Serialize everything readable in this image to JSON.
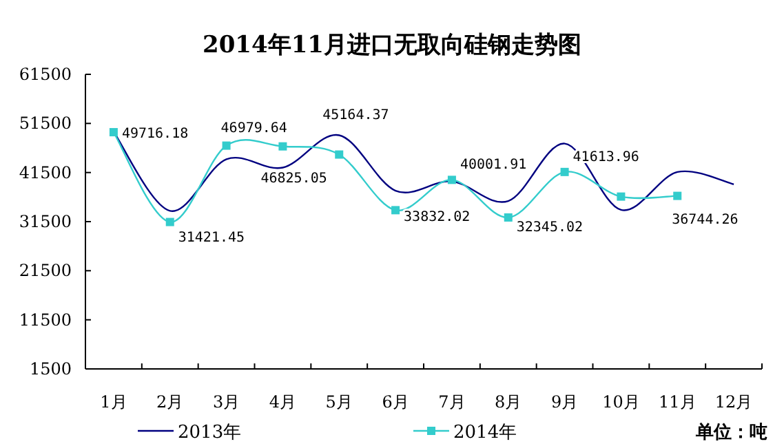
{
  "chart_data": {
    "type": "line",
    "title": "2014年11月进口无取向硅钢走势图",
    "categories": [
      "1月",
      "2月",
      "3月",
      "4月",
      "5月",
      "6月",
      "7月",
      "8月",
      "9月",
      "10月",
      "11月",
      "12月"
    ],
    "ylim": [
      1500,
      61500
    ],
    "yticks": [
      1500,
      11500,
      21500,
      31500,
      41500,
      51500,
      61500
    ],
    "series": [
      {
        "name": "2013年",
        "color": "#000080",
        "marker": "none",
        "values": [
          49800,
          33700,
          44200,
          42500,
          49100,
          37800,
          39700,
          35700,
          47400,
          33900,
          41600,
          39100
        ]
      },
      {
        "name": "2014年",
        "color": "#33cccc",
        "marker": "square",
        "values": [
          49716.18,
          31421.45,
          46979.64,
          46825.05,
          45164.37,
          33832.02,
          40001.91,
          32345.02,
          41613.96,
          36600,
          36744.26,
          null
        ],
        "value_labels": [
          "49716.18",
          "31421.45",
          "46979.64",
          "46825.05",
          "45164.37",
          "33832.02",
          "40001.91",
          "32345.02",
          "41613.96",
          null,
          "36744.26",
          null
        ]
      }
    ],
    "legend": "bottom",
    "grid": false,
    "annotations": [
      "单位：吨"
    ]
  }
}
